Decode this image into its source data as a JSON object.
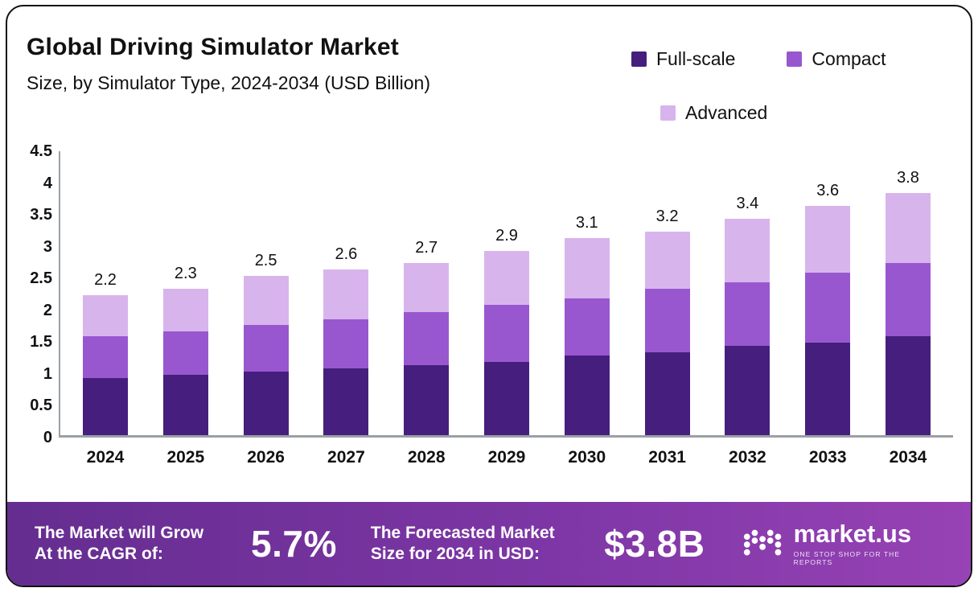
{
  "header": {
    "title": "Global Driving Simulator Market",
    "subtitle": "Size, by Simulator Type, 2024-2034 (USD Billion)"
  },
  "legend": [
    {
      "label": "Full-scale",
      "color": "#461e7d"
    },
    {
      "label": "Compact",
      "color": "#9857cf"
    },
    {
      "label": "Advanced",
      "color": "#d8b4ec"
    }
  ],
  "chart_data": {
    "type": "bar",
    "stacked": true,
    "title": "Global Driving Simulator Market Size, by Simulator Type, 2024-2034 (USD Billion)",
    "xlabel": "",
    "ylabel": "",
    "ylim": [
      0,
      4.5
    ],
    "grid": false,
    "legend_position": "top-right",
    "categories": [
      "2024",
      "2025",
      "2026",
      "2027",
      "2028",
      "2029",
      "2030",
      "2031",
      "2032",
      "2033",
      "2034"
    ],
    "series": [
      {
        "name": "Full-scale",
        "color": "#461e7d",
        "values": [
          0.9,
          0.95,
          1.0,
          1.05,
          1.1,
          1.15,
          1.25,
          1.3,
          1.4,
          1.45,
          1.55
        ]
      },
      {
        "name": "Compact",
        "color": "#9857cf",
        "values": [
          0.65,
          0.68,
          0.73,
          0.77,
          0.83,
          0.9,
          0.9,
          1.0,
          1.0,
          1.1,
          1.15
        ]
      },
      {
        "name": "Advanced",
        "color": "#d8b4ec",
        "values": [
          0.65,
          0.67,
          0.77,
          0.78,
          0.77,
          0.85,
          0.95,
          0.9,
          1.0,
          1.05,
          1.1
        ]
      }
    ],
    "totals": [
      "2.2",
      "2.3",
      "2.5",
      "2.6",
      "2.7",
      "2.9",
      "3.1",
      "3.2",
      "3.4",
      "3.6",
      "3.8"
    ],
    "yticks": [
      {
        "v": 0,
        "label": "0"
      },
      {
        "v": 0.5,
        "label": "0.5"
      },
      {
        "v": 1,
        "label": "1"
      },
      {
        "v": 1.5,
        "label": "1.5"
      },
      {
        "v": 2,
        "label": "2"
      },
      {
        "v": 2.5,
        "label": "2.5"
      },
      {
        "v": 3,
        "label": "3"
      },
      {
        "v": 3.5,
        "label": "3.5"
      },
      {
        "v": 4,
        "label": "4"
      },
      {
        "v": 4.5,
        "label": "4.5"
      }
    ]
  },
  "banner": {
    "stat1_label_line1": "The Market will Grow",
    "stat1_label_line2": "At the CAGR of:",
    "stat1_value": "5.7%",
    "stat2_label_line1": "The Forecasted Market",
    "stat2_label_line2": "Size for 2034 in USD:",
    "stat2_value": "$3.8B",
    "logo_text": "market.us",
    "logo_tagline": "ONE STOP SHOP FOR THE REPORTS"
  },
  "colors": {
    "banner_gradient_start": "#652d90",
    "banner_gradient_end": "#9742b5",
    "axis": "#9aa0a6",
    "text": "#111111"
  }
}
